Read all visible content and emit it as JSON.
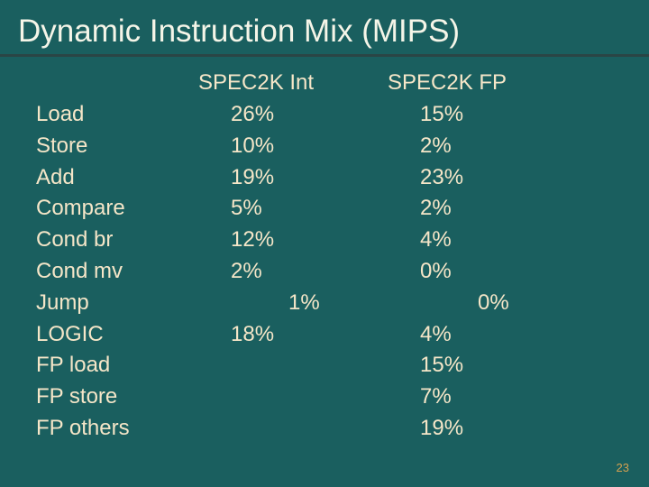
{
  "title": "Dynamic Instruction Mix (MIPS)",
  "headers": {
    "int": "SPEC2K Int",
    "fp": "SPEC2K FP"
  },
  "instructions": [
    "Load",
    "Store",
    "Add",
    "Compare",
    "Cond br",
    "Cond mv",
    "Jump",
    "LOGIC",
    "FP load",
    "FP store",
    "FP others"
  ],
  "int_values": [
    "26%",
    "10%",
    "19%",
    "5%",
    "12%",
    "2%",
    "1%",
    "18%",
    "",
    "",
    ""
  ],
  "fp_values": [
    "15%",
    "2%",
    "23%",
    "2%",
    "4%",
    "0%",
    "0%",
    "4%",
    "15%",
    "7%",
    "19%"
  ],
  "page_number": "23"
}
